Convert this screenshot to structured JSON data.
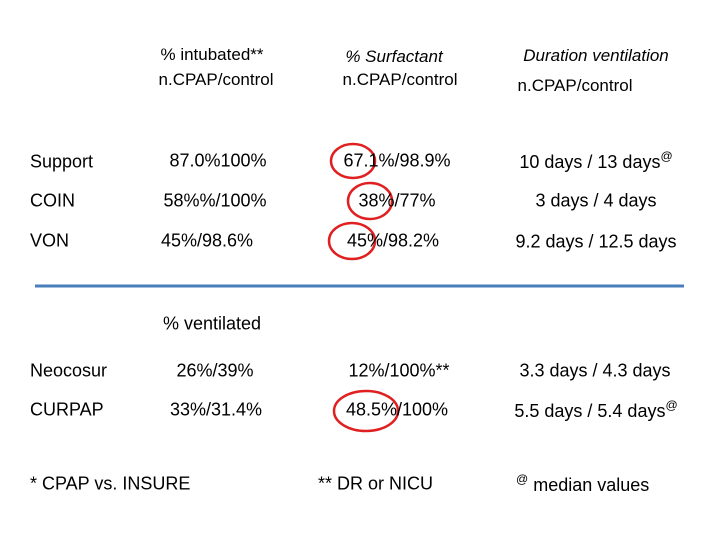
{
  "header": {
    "columns": [
      {
        "line1": "% intubated**",
        "line2": "n.CPAP/control"
      },
      {
        "line1": "% Surfactant",
        "line2": "n.CPAP/control"
      },
      {
        "line1": "Duration ventilation",
        "line2": "n.CPAP/control"
      }
    ]
  },
  "table": {
    "rows": [
      {
        "label": "Support",
        "cells": [
          {
            "text": "87.0%100%"
          },
          {
            "text": "67.1%/98.9%"
          },
          {
            "text": "10 days / 13 days",
            "sup": "@"
          }
        ]
      },
      {
        "label": "COIN",
        "cells": [
          {
            "text": "58%%/100%"
          },
          {
            "text": "38%/77%"
          },
          {
            "text": "3 days / 4 days"
          }
        ]
      },
      {
        "label": "VON",
        "cells": [
          {
            "text": "45%/98.6%"
          },
          {
            "text": "45%/98.2%"
          },
          {
            "text": "9.2 days / 12.5 days"
          }
        ]
      }
    ]
  },
  "subheader": "% ventilated",
  "table2": {
    "rows": [
      {
        "label": "Neocosur",
        "cells": [
          {
            "text": "26%/39%"
          },
          {
            "text": "12%/100%**"
          },
          {
            "text": "3.3 days / 4.3 days"
          }
        ]
      },
      {
        "label": "CURPAP",
        "cells": [
          {
            "text": "33%/31.4%"
          },
          {
            "text": "48.5%/100%"
          },
          {
            "text": "5.5 days / 5.4 days",
            "sup": "@"
          }
        ]
      }
    ]
  },
  "footnotes": [
    {
      "text": "* CPAP vs. INSURE"
    },
    {
      "text": "** DR or NICU"
    },
    {
      "sup": "@",
      "text": "median values"
    }
  ]
}
